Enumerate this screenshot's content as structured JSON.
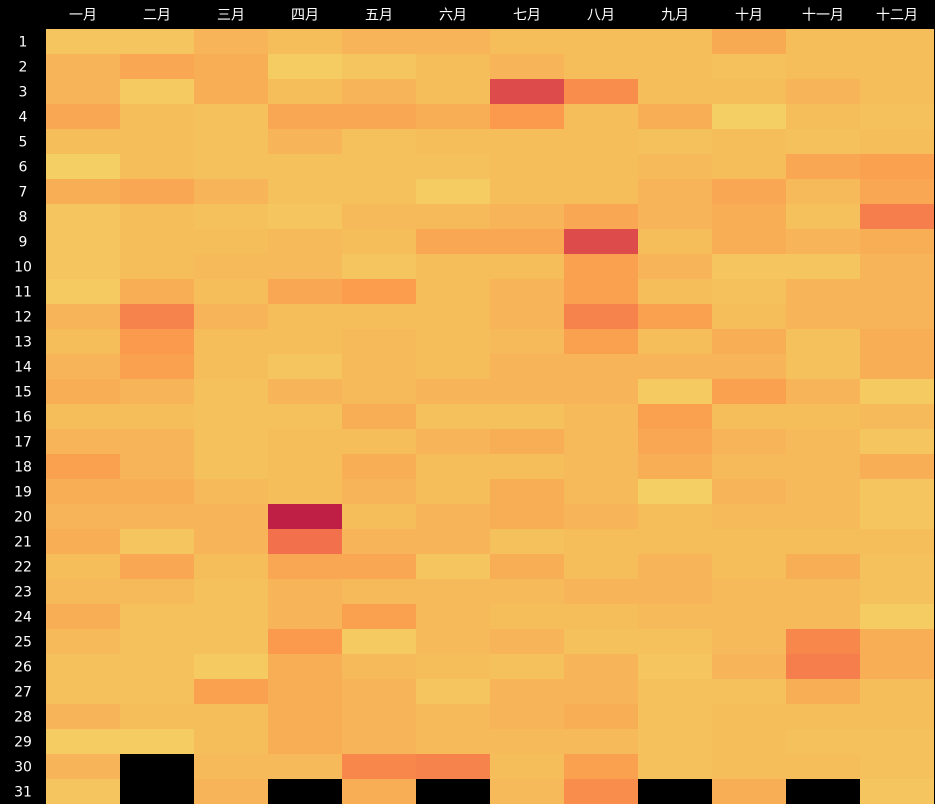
{
  "chart_data": {
    "type": "heatmap",
    "title": "",
    "xlabel": "",
    "ylabel": "",
    "columns": [
      "一月",
      "二月",
      "三月",
      "四月",
      "五月",
      "六月",
      "七月",
      "八月",
      "九月",
      "十月",
      "十一月",
      "十二月"
    ],
    "rows": [
      "1",
      "2",
      "3",
      "4",
      "5",
      "6",
      "7",
      "8",
      "9",
      "10",
      "11",
      "12",
      "13",
      "14",
      "15",
      "16",
      "17",
      "18",
      "19",
      "20",
      "21",
      "22",
      "23",
      "24",
      "25",
      "26",
      "27",
      "28",
      "29",
      "30",
      "31"
    ],
    "value_range": [
      0,
      1
    ],
    "missing_color": "#000000",
    "colorscale": [
      "#f3d566",
      "#f5c35e",
      "#f7b056",
      "#fb9a4c",
      "#f4734c",
      "#e0504b",
      "#bf1f45"
    ],
    "values": [
      [
        0.14,
        0.14,
        0.3,
        0.22,
        0.3,
        0.3,
        0.22,
        0.22,
        0.22,
        0.38,
        0.22,
        0.22
      ],
      [
        0.3,
        0.4,
        0.35,
        0.08,
        0.15,
        0.22,
        0.3,
        0.22,
        0.22,
        0.18,
        0.22,
        0.22
      ],
      [
        0.3,
        0.1,
        0.35,
        0.22,
        0.3,
        0.22,
        0.85,
        0.55,
        0.22,
        0.22,
        0.3,
        0.22
      ],
      [
        0.4,
        0.22,
        0.18,
        0.4,
        0.4,
        0.35,
        0.5,
        0.22,
        0.35,
        0.06,
        0.22,
        0.18
      ],
      [
        0.22,
        0.22,
        0.18,
        0.3,
        0.18,
        0.22,
        0.22,
        0.22,
        0.18,
        0.22,
        0.18,
        0.22
      ],
      [
        0.06,
        0.22,
        0.18,
        0.18,
        0.18,
        0.18,
        0.22,
        0.22,
        0.25,
        0.22,
        0.4,
        0.45
      ],
      [
        0.35,
        0.4,
        0.3,
        0.18,
        0.18,
        0.08,
        0.22,
        0.22,
        0.3,
        0.4,
        0.25,
        0.4
      ],
      [
        0.14,
        0.22,
        0.18,
        0.14,
        0.25,
        0.25,
        0.3,
        0.4,
        0.3,
        0.35,
        0.18,
        0.62
      ],
      [
        0.14,
        0.22,
        0.22,
        0.25,
        0.22,
        0.4,
        0.4,
        0.85,
        0.22,
        0.35,
        0.3,
        0.35
      ],
      [
        0.14,
        0.22,
        0.25,
        0.25,
        0.14,
        0.22,
        0.22,
        0.45,
        0.3,
        0.14,
        0.14,
        0.3
      ],
      [
        0.1,
        0.35,
        0.22,
        0.4,
        0.48,
        0.22,
        0.3,
        0.45,
        0.22,
        0.18,
        0.3,
        0.3
      ],
      [
        0.3,
        0.6,
        0.3,
        0.22,
        0.22,
        0.22,
        0.3,
        0.6,
        0.45,
        0.22,
        0.3,
        0.3
      ],
      [
        0.22,
        0.5,
        0.22,
        0.22,
        0.25,
        0.22,
        0.25,
        0.45,
        0.22,
        0.35,
        0.18,
        0.35
      ],
      [
        0.3,
        0.45,
        0.22,
        0.14,
        0.25,
        0.22,
        0.3,
        0.3,
        0.3,
        0.3,
        0.18,
        0.35
      ],
      [
        0.35,
        0.3,
        0.18,
        0.3,
        0.25,
        0.3,
        0.3,
        0.3,
        0.1,
        0.45,
        0.3,
        0.1
      ],
      [
        0.22,
        0.22,
        0.18,
        0.18,
        0.35,
        0.18,
        0.18,
        0.25,
        0.45,
        0.22,
        0.22,
        0.25
      ],
      [
        0.3,
        0.3,
        0.18,
        0.22,
        0.22,
        0.3,
        0.35,
        0.25,
        0.4,
        0.3,
        0.25,
        0.14
      ],
      [
        0.45,
        0.3,
        0.18,
        0.22,
        0.35,
        0.22,
        0.22,
        0.25,
        0.35,
        0.25,
        0.25,
        0.35
      ],
      [
        0.35,
        0.35,
        0.25,
        0.22,
        0.3,
        0.22,
        0.35,
        0.25,
        0.06,
        0.3,
        0.25,
        0.14
      ],
      [
        0.3,
        0.3,
        0.3,
        1.0,
        0.22,
        0.3,
        0.35,
        0.3,
        0.22,
        0.25,
        0.25,
        0.14
      ],
      [
        0.35,
        0.14,
        0.3,
        0.68,
        0.3,
        0.3,
        0.18,
        0.22,
        0.22,
        0.22,
        0.22,
        0.22
      ],
      [
        0.22,
        0.4,
        0.22,
        0.4,
        0.4,
        0.14,
        0.35,
        0.22,
        0.3,
        0.22,
        0.35,
        0.18
      ],
      [
        0.25,
        0.25,
        0.18,
        0.3,
        0.25,
        0.25,
        0.25,
        0.3,
        0.3,
        0.25,
        0.25,
        0.18
      ],
      [
        0.35,
        0.18,
        0.18,
        0.3,
        0.45,
        0.25,
        0.22,
        0.22,
        0.25,
        0.25,
        0.25,
        0.08
      ],
      [
        0.25,
        0.18,
        0.18,
        0.5,
        0.1,
        0.25,
        0.3,
        0.18,
        0.18,
        0.25,
        0.58,
        0.35
      ],
      [
        0.18,
        0.18,
        0.1,
        0.35,
        0.25,
        0.22,
        0.18,
        0.3,
        0.14,
        0.3,
        0.62,
        0.35
      ],
      [
        0.18,
        0.18,
        0.45,
        0.35,
        0.3,
        0.14,
        0.3,
        0.3,
        0.18,
        0.18,
        0.35,
        0.22
      ],
      [
        0.3,
        0.22,
        0.22,
        0.35,
        0.3,
        0.25,
        0.3,
        0.35,
        0.18,
        0.22,
        0.22,
        0.22
      ],
      [
        0.08,
        0.08,
        0.22,
        0.35,
        0.3,
        0.25,
        0.25,
        0.25,
        0.18,
        0.22,
        0.18,
        0.18
      ],
      [
        0.3,
        null,
        0.25,
        0.25,
        0.58,
        0.6,
        0.22,
        0.45,
        0.18,
        0.22,
        0.22,
        0.18
      ],
      [
        0.14,
        null,
        0.3,
        null,
        0.35,
        null,
        0.25,
        0.55,
        null,
        0.35,
        null,
        0.14
      ]
    ]
  }
}
